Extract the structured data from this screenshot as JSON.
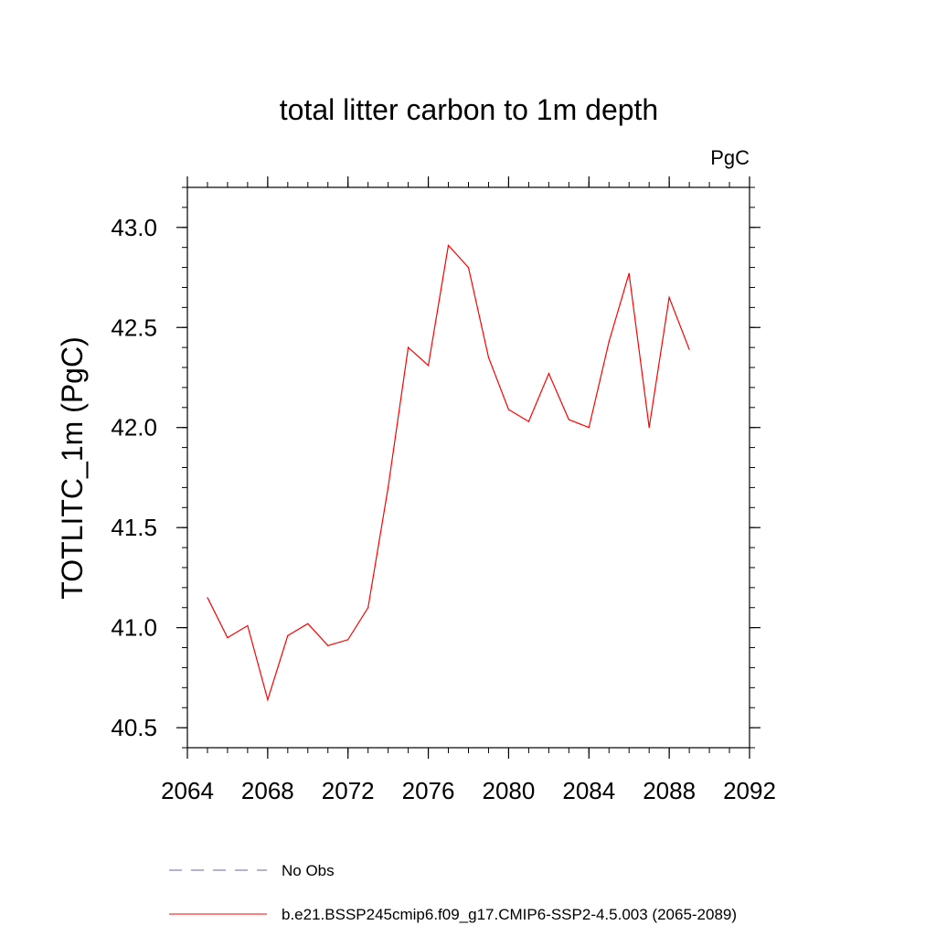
{
  "chart_data": {
    "type": "line",
    "title": "total litter carbon to 1m depth",
    "units_label": "PgC",
    "ylabel": "TOTLITC_1m  (PgC)",
    "xlabel": "",
    "xlim": [
      2064,
      2092
    ],
    "ylim": [
      40.4,
      43.2
    ],
    "x_major_ticks": [
      2064,
      2068,
      2072,
      2076,
      2080,
      2084,
      2088,
      2092
    ],
    "x_tick_labels": [
      "2064",
      "2068",
      "2072",
      "2076",
      "2080",
      "2084",
      "2088",
      "2092"
    ],
    "x_minor_step": 1,
    "y_major_ticks": [
      40.5,
      41.0,
      41.5,
      42.0,
      42.5,
      43.0
    ],
    "y_tick_labels": [
      "40.5",
      "41.0",
      "41.5",
      "42.0",
      "42.5",
      "43.0"
    ],
    "y_minor_step": 0.1,
    "grid": false,
    "legend_position": "bottom",
    "legend": [
      {
        "label": "No Obs",
        "color": "#6666aa",
        "style": "dashed"
      },
      {
        "label": "b.e21.BSSP245cmip6.f09_g17.CMIP6-SSP2-4.5.003 (2065-2089)",
        "color": "#ff0000",
        "style": "solid"
      }
    ],
    "series": [
      {
        "name": "b.e21.BSSP245cmip6.f09_g17.CMIP6-SSP2-4.5.003 (2065-2089)",
        "color": "#ff0000",
        "x": [
          2065,
          2066,
          2067,
          2068,
          2069,
          2070,
          2071,
          2072,
          2073,
          2074,
          2075,
          2076,
          2077,
          2078,
          2079,
          2080,
          2081,
          2082,
          2083,
          2084,
          2085,
          2086,
          2087,
          2088,
          2089
        ],
        "y": [
          41.15,
          40.95,
          41.01,
          40.64,
          40.96,
          41.02,
          40.91,
          40.94,
          41.1,
          41.7,
          42.4,
          42.31,
          42.91,
          42.8,
          42.35,
          42.09,
          42.03,
          42.27,
          42.04,
          42.0,
          42.43,
          42.77,
          42.0,
          42.65,
          42.39
        ]
      }
    ]
  }
}
